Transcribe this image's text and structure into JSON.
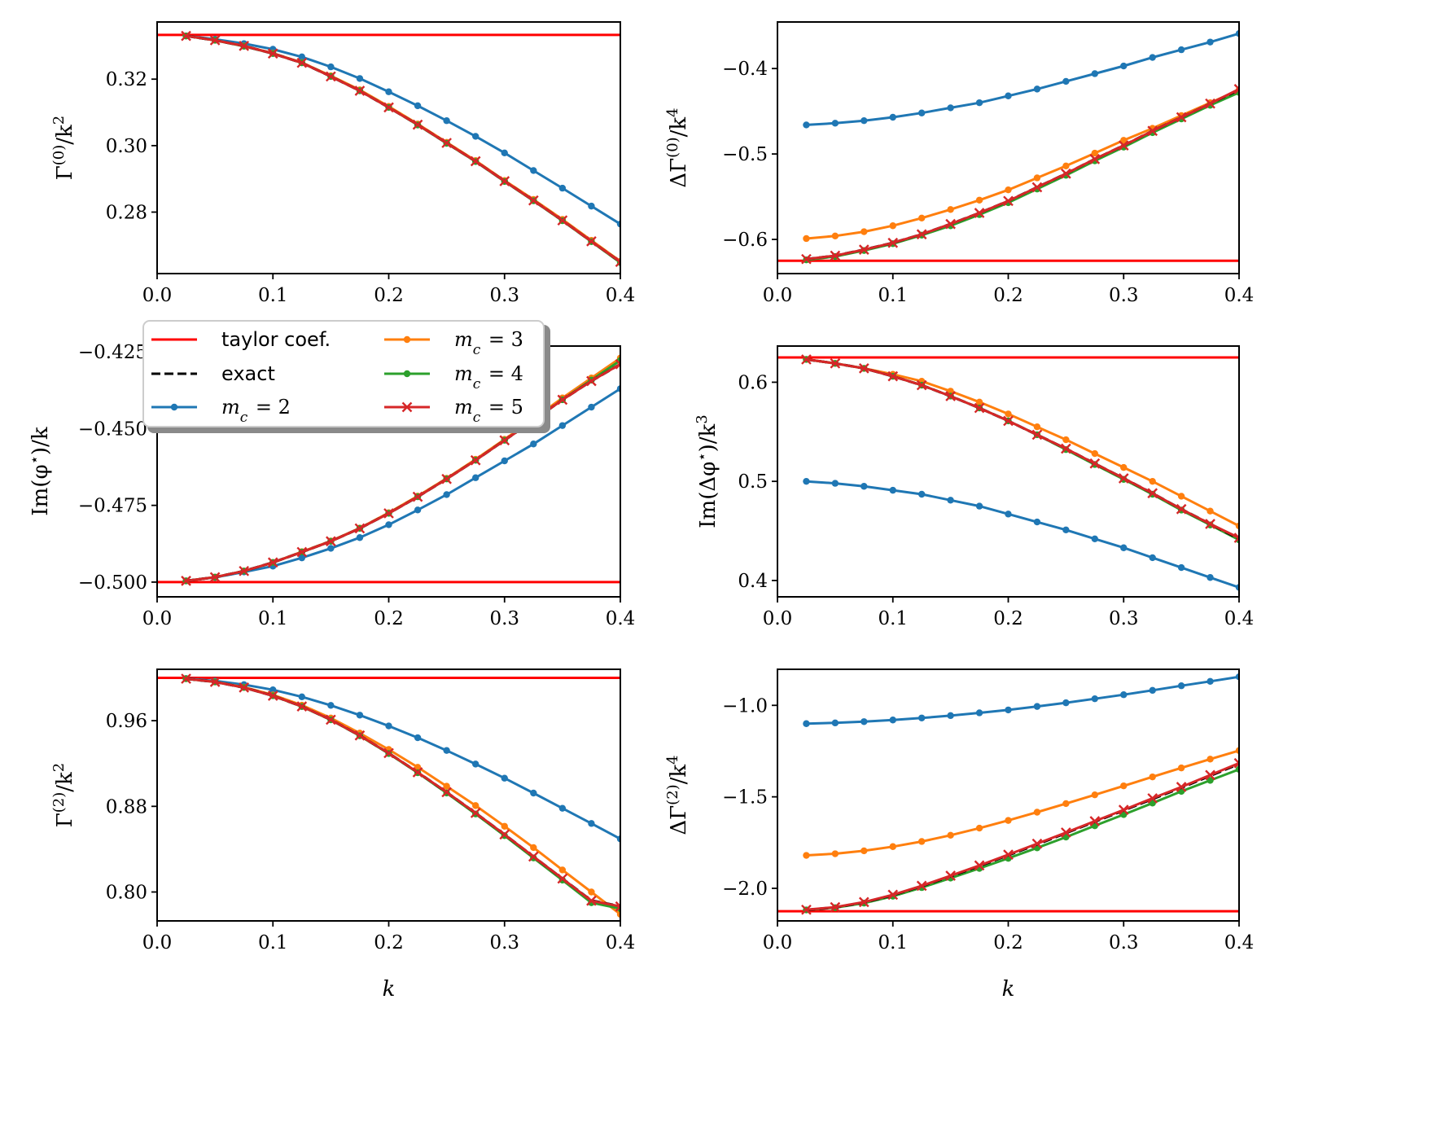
{
  "colors": {
    "taylor": "#ff0000",
    "exact": "#000000",
    "m2": "#1f77b4",
    "m3": "#ff7f0e",
    "m4": "#2ca02c",
    "m5": "#d62728"
  },
  "legend": {
    "placement": "top-left of middle-left panel",
    "entries": [
      {
        "key": "taylor",
        "label": "taylor coef.",
        "style": "solid",
        "marker": "none"
      },
      {
        "key": "exact",
        "label": "exact",
        "style": "dashed",
        "marker": "none"
      },
      {
        "key": "m2",
        "label": "m_c = 2",
        "style": "solid",
        "marker": "dot"
      },
      {
        "key": "m3",
        "label": "m_c = 3",
        "style": "solid",
        "marker": "dot"
      },
      {
        "key": "m4",
        "label": "m_c = 4",
        "style": "solid",
        "marker": "dot"
      },
      {
        "key": "m5",
        "label": "m_c = 5",
        "style": "solid",
        "marker": "x"
      }
    ]
  },
  "chart_data": [
    {
      "type": "line",
      "panel": "top-left",
      "ylabel": "Γ(0)/k²",
      "xlabel": "",
      "xlim": [
        0,
        0.4
      ],
      "ylim": [
        0.2615,
        0.3372
      ],
      "xticks": [
        "0.0",
        "0.1",
        "0.2",
        "0.3",
        "0.4"
      ],
      "yticks": [
        {
          "v": 0.28,
          "label": "0.28"
        },
        {
          "v": 0.3,
          "label": "0.30"
        },
        {
          "v": 0.32,
          "label": "0.32"
        }
      ],
      "taylor": 0.3333,
      "x": [
        0.025,
        0.05,
        0.075,
        0.1,
        0.125,
        0.15,
        0.175,
        0.2,
        0.225,
        0.25,
        0.275,
        0.3,
        0.325,
        0.35,
        0.375,
        0.4
      ],
      "series": [
        {
          "key": "m2",
          "values": [
            0.333,
            0.332,
            0.3307,
            0.329,
            0.3267,
            0.3237,
            0.3202,
            0.3162,
            0.312,
            0.3075,
            0.3028,
            0.2978,
            0.2925,
            0.2872,
            0.2818,
            0.2764
          ]
        },
        {
          "key": "m3",
          "values": [
            0.333,
            0.3317,
            0.33,
            0.3278,
            0.325,
            0.321,
            0.3168,
            0.3118,
            0.3065,
            0.301,
            0.2955,
            0.2895,
            0.2838,
            0.2778,
            0.2715,
            0.2652
          ]
        },
        {
          "key": "m4",
          "values": [
            0.333,
            0.3317,
            0.3299,
            0.3277,
            0.3249,
            0.3208,
            0.3165,
            0.3115,
            0.3062,
            0.3007,
            0.2952,
            0.2892,
            0.2834,
            0.2774,
            0.2711,
            0.2648
          ]
        },
        {
          "key": "exact",
          "values": [
            0.333,
            0.3317,
            0.33,
            0.3277,
            0.3249,
            0.3208,
            0.3165,
            0.3115,
            0.3063,
            0.3008,
            0.2953,
            0.2893,
            0.2835,
            0.2775,
            0.2712,
            0.265
          ]
        },
        {
          "key": "m5",
          "values": [
            0.333,
            0.3317,
            0.33,
            0.3277,
            0.3249,
            0.3208,
            0.3165,
            0.3115,
            0.3063,
            0.3008,
            0.2953,
            0.2893,
            0.2835,
            0.2775,
            0.2712,
            0.265
          ]
        }
      ]
    },
    {
      "type": "line",
      "panel": "top-right",
      "ylabel": "ΔΓ(0)/k⁴",
      "xlabel": "",
      "xlim": [
        0,
        0.4
      ],
      "ylim": [
        -0.64,
        -0.3455
      ],
      "xticks": [
        "0.0",
        "0.1",
        "0.2",
        "0.3",
        "0.4"
      ],
      "yticks": [
        {
          "v": -0.6,
          "label": "−0.6"
        },
        {
          "v": -0.5,
          "label": "−0.5"
        },
        {
          "v": -0.4,
          "label": "−0.4"
        }
      ],
      "taylor": -0.625,
      "x": [
        0.025,
        0.05,
        0.075,
        0.1,
        0.125,
        0.15,
        0.175,
        0.2,
        0.225,
        0.25,
        0.275,
        0.3,
        0.325,
        0.35,
        0.375,
        0.4
      ],
      "series": [
        {
          "key": "m2",
          "values": [
            -0.466,
            -0.464,
            -0.461,
            -0.457,
            -0.452,
            -0.446,
            -0.44,
            -0.432,
            -0.424,
            -0.415,
            -0.406,
            -0.397,
            -0.387,
            -0.378,
            -0.369,
            -0.359
          ]
        },
        {
          "key": "m3",
          "values": [
            -0.599,
            -0.596,
            -0.591,
            -0.584,
            -0.575,
            -0.565,
            -0.554,
            -0.542,
            -0.528,
            -0.514,
            -0.499,
            -0.484,
            -0.47,
            -0.455,
            -0.44,
            -0.425
          ]
        },
        {
          "key": "m4",
          "values": [
            -0.624,
            -0.62,
            -0.613,
            -0.605,
            -0.595,
            -0.584,
            -0.571,
            -0.557,
            -0.541,
            -0.525,
            -0.508,
            -0.492,
            -0.475,
            -0.459,
            -0.443,
            -0.428
          ]
        },
        {
          "key": "exact",
          "values": [
            -0.623,
            -0.619,
            -0.612,
            -0.604,
            -0.594,
            -0.582,
            -0.569,
            -0.555,
            -0.539,
            -0.523,
            -0.506,
            -0.49,
            -0.473,
            -0.457,
            -0.441,
            -0.425
          ]
        },
        {
          "key": "m5",
          "values": [
            -0.623,
            -0.619,
            -0.612,
            -0.604,
            -0.594,
            -0.582,
            -0.569,
            -0.555,
            -0.539,
            -0.523,
            -0.506,
            -0.49,
            -0.473,
            -0.457,
            -0.441,
            -0.424
          ]
        }
      ]
    },
    {
      "type": "line",
      "panel": "middle-left",
      "ylabel": "Im(φ*)/k",
      "xlabel": "",
      "xlim": [
        0,
        0.4
      ],
      "ylim": [
        -0.5048,
        -0.4231
      ],
      "xticks": [
        "0.0",
        "0.1",
        "0.2",
        "0.3",
        "0.4"
      ],
      "yticks": [
        {
          "v": -0.5,
          "label": "−0.500"
        },
        {
          "v": -0.475,
          "label": "−0.475"
        },
        {
          "v": -0.45,
          "label": "−0.450"
        },
        {
          "v": -0.425,
          "label": "−0.425"
        }
      ],
      "taylor": -0.5,
      "x": [
        0.025,
        0.05,
        0.075,
        0.1,
        0.125,
        0.15,
        0.175,
        0.2,
        0.225,
        0.25,
        0.275,
        0.3,
        0.325,
        0.35,
        0.375,
        0.4
      ],
      "series": [
        {
          "key": "m2",
          "values": [
            -0.4996,
            -0.4985,
            -0.4967,
            -0.4948,
            -0.4921,
            -0.489,
            -0.4855,
            -0.4813,
            -0.4765,
            -0.4715,
            -0.466,
            -0.4605,
            -0.455,
            -0.449,
            -0.443,
            -0.437
          ]
        },
        {
          "key": "m3",
          "values": [
            -0.4996,
            -0.4984,
            -0.4964,
            -0.4936,
            -0.4901,
            -0.4866,
            -0.4824,
            -0.4774,
            -0.472,
            -0.4662,
            -0.46,
            -0.4535,
            -0.4468,
            -0.44,
            -0.4335,
            -0.427
          ]
        },
        {
          "key": "m4",
          "values": [
            -0.4996,
            -0.4984,
            -0.4964,
            -0.4936,
            -0.4902,
            -0.4867,
            -0.4825,
            -0.4776,
            -0.4722,
            -0.4664,
            -0.4603,
            -0.4538,
            -0.4473,
            -0.4406,
            -0.4342,
            -0.4278
          ]
        },
        {
          "key": "exact",
          "values": [
            -0.4996,
            -0.4984,
            -0.4964,
            -0.4936,
            -0.4902,
            -0.4867,
            -0.4825,
            -0.4776,
            -0.4722,
            -0.4664,
            -0.4603,
            -0.4538,
            -0.4473,
            -0.4406,
            -0.4345,
            -0.429
          ]
        },
        {
          "key": "m5",
          "values": [
            -0.4996,
            -0.4984,
            -0.4964,
            -0.4936,
            -0.4902,
            -0.4867,
            -0.4825,
            -0.4776,
            -0.4722,
            -0.4664,
            -0.4603,
            -0.4538,
            -0.4473,
            -0.4406,
            -0.4345,
            -0.429
          ]
        }
      ]
    },
    {
      "type": "line",
      "panel": "middle-right",
      "ylabel": "Im(Δφ*)/k³",
      "xlabel": "",
      "xlim": [
        0,
        0.4
      ],
      "ylim": [
        0.3835,
        0.6365
      ],
      "xticks": [
        "0.0",
        "0.1",
        "0.2",
        "0.3",
        "0.4"
      ],
      "yticks": [
        {
          "v": 0.4,
          "label": "0.4"
        },
        {
          "v": 0.5,
          "label": "0.5"
        },
        {
          "v": 0.6,
          "label": "0.6"
        }
      ],
      "taylor": 0.625,
      "x": [
        0.025,
        0.05,
        0.075,
        0.1,
        0.125,
        0.15,
        0.175,
        0.2,
        0.225,
        0.25,
        0.275,
        0.3,
        0.325,
        0.35,
        0.375,
        0.4
      ],
      "series": [
        {
          "key": "m2",
          "values": [
            0.5,
            0.498,
            0.495,
            0.491,
            0.487,
            0.481,
            0.475,
            0.467,
            0.459,
            0.451,
            0.442,
            0.433,
            0.423,
            0.413,
            0.403,
            0.393
          ]
        },
        {
          "key": "m3",
          "values": [
            0.623,
            0.619,
            0.614,
            0.608,
            0.601,
            0.591,
            0.58,
            0.568,
            0.555,
            0.542,
            0.528,
            0.514,
            0.5,
            0.485,
            0.47,
            0.455
          ]
        },
        {
          "key": "m4",
          "values": [
            0.623,
            0.619,
            0.614,
            0.606,
            0.597,
            0.586,
            0.574,
            0.561,
            0.547,
            0.532,
            0.517,
            0.502,
            0.487,
            0.471,
            0.456,
            0.441
          ]
        },
        {
          "key": "exact",
          "values": [
            0.623,
            0.619,
            0.614,
            0.606,
            0.597,
            0.586,
            0.574,
            0.561,
            0.547,
            0.533,
            0.518,
            0.503,
            0.488,
            0.472,
            0.457,
            0.442
          ]
        },
        {
          "key": "m5",
          "values": [
            0.623,
            0.619,
            0.614,
            0.606,
            0.597,
            0.586,
            0.574,
            0.561,
            0.547,
            0.533,
            0.518,
            0.503,
            0.488,
            0.472,
            0.457,
            0.443
          ]
        }
      ]
    },
    {
      "type": "line",
      "panel": "bottom-left",
      "ylabel": "Γ(2)/k²",
      "xlabel": "k",
      "xlim": [
        0,
        0.4
      ],
      "ylim": [
        0.773,
        1.008
      ],
      "xticks": [
        "0.0",
        "0.1",
        "0.2",
        "0.3",
        "0.4"
      ],
      "yticks": [
        {
          "v": 0.8,
          "label": "0.80"
        },
        {
          "v": 0.88,
          "label": "0.88"
        },
        {
          "v": 0.96,
          "label": "0.96"
        }
      ],
      "taylor": 1.0,
      "x": [
        0.025,
        0.05,
        0.075,
        0.1,
        0.125,
        0.15,
        0.175,
        0.2,
        0.225,
        0.25,
        0.275,
        0.3,
        0.325,
        0.35,
        0.375,
        0.4
      ],
      "series": [
        {
          "key": "m2",
          "values": [
            0.9994,
            0.9971,
            0.9937,
            0.9888,
            0.9823,
            0.9743,
            0.9652,
            0.9551,
            0.9441,
            0.9322,
            0.9195,
            0.9063,
            0.8924,
            0.8782,
            0.864,
            0.8496
          ]
        },
        {
          "key": "m3",
          "values": [
            0.9992,
            0.9963,
            0.9913,
            0.9841,
            0.9745,
            0.9625,
            0.9484,
            0.9331,
            0.9165,
            0.8988,
            0.8807,
            0.8614,
            0.8415,
            0.8206,
            0.8,
            0.7792
          ]
        },
        {
          "key": "m4",
          "values": [
            0.9992,
            0.9962,
            0.991,
            0.9833,
            0.9732,
            0.9608,
            0.9459,
            0.9293,
            0.9114,
            0.8925,
            0.8729,
            0.8526,
            0.8318,
            0.8111,
            0.79,
            0.7845
          ]
        },
        {
          "key": "exact",
          "values": [
            0.9992,
            0.9962,
            0.991,
            0.9833,
            0.9733,
            0.9609,
            0.9462,
            0.9297,
            0.9118,
            0.8932,
            0.8738,
            0.8537,
            0.8331,
            0.8125,
            0.792,
            0.7868
          ]
        },
        {
          "key": "m5",
          "values": [
            0.9992,
            0.9962,
            0.991,
            0.9833,
            0.9733,
            0.9609,
            0.9462,
            0.9297,
            0.9118,
            0.8932,
            0.8738,
            0.8537,
            0.8331,
            0.8125,
            0.7918,
            0.7865
          ]
        }
      ]
    },
    {
      "type": "line",
      "panel": "bottom-right",
      "ylabel": "ΔΓ(2)/k⁴",
      "xlabel": "k",
      "xlim": [
        0,
        0.4
      ],
      "ylim": [
        -2.178,
        -0.803
      ],
      "xticks": [
        "0.0",
        "0.1",
        "0.2",
        "0.3",
        "0.4"
      ],
      "yticks": [
        {
          "v": -2.0,
          "label": "−2.0"
        },
        {
          "v": -1.5,
          "label": "−1.5"
        },
        {
          "v": -1.0,
          "label": "−1.0"
        }
      ],
      "taylor": -2.125,
      "x": [
        0.025,
        0.05,
        0.075,
        0.1,
        0.125,
        0.15,
        0.175,
        0.2,
        0.225,
        0.25,
        0.275,
        0.3,
        0.325,
        0.35,
        0.375,
        0.4
      ],
      "series": [
        {
          "key": "m2",
          "values": [
            -1.1,
            -1.096,
            -1.089,
            -1.08,
            -1.069,
            -1.056,
            -1.041,
            -1.025,
            -1.006,
            -0.986,
            -0.964,
            -0.942,
            -0.918,
            -0.893,
            -0.869,
            -0.844
          ]
        },
        {
          "key": "m3",
          "values": [
            -1.82,
            -1.811,
            -1.795,
            -1.772,
            -1.744,
            -1.71,
            -1.671,
            -1.629,
            -1.584,
            -1.537,
            -1.489,
            -1.44,
            -1.391,
            -1.342,
            -1.294,
            -1.247
          ]
        },
        {
          "key": "m4",
          "values": [
            -2.118,
            -2.106,
            -2.081,
            -2.043,
            -1.996,
            -1.944,
            -1.891,
            -1.836,
            -1.779,
            -1.72,
            -1.658,
            -1.597,
            -1.534,
            -1.47,
            -1.41,
            -1.35
          ]
        },
        {
          "key": "exact",
          "values": [
            -2.118,
            -2.104,
            -2.077,
            -2.037,
            -1.988,
            -1.934,
            -1.878,
            -1.819,
            -1.76,
            -1.698,
            -1.636,
            -1.574,
            -1.512,
            -1.45,
            -1.385,
            -1.32
          ]
        },
        {
          "key": "m5",
          "values": [
            -2.117,
            -2.103,
            -2.075,
            -2.035,
            -1.986,
            -1.931,
            -1.875,
            -1.816,
            -1.756,
            -1.695,
            -1.633,
            -1.571,
            -1.508,
            -1.446,
            -1.381,
            -1.316
          ]
        }
      ]
    }
  ]
}
